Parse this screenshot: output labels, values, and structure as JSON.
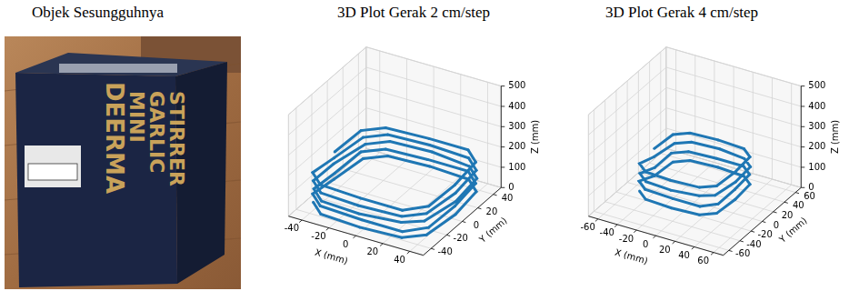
{
  "figure": {
    "photo": {
      "title": "Objek Sesungguhnya",
      "box_text": [
        "DEERMA",
        "MINI",
        "GARLIC",
        "STIRRER"
      ]
    }
  },
  "chart_data": [
    {
      "type": "scatter3d",
      "title": "3D Plot Gerak 2 cm/step",
      "xlabel": "X (mm)",
      "ylabel": "Y (mm)",
      "zlabel": "Z (mm)",
      "xlim": [
        -50,
        50
      ],
      "xticks": [
        -40,
        -20,
        0,
        20,
        40
      ],
      "ylim": [
        -50,
        50
      ],
      "yticks": [
        -40,
        -20,
        0,
        20,
        40
      ],
      "zlim": [
        0,
        500
      ],
      "zticks": [
        0,
        100,
        200,
        300,
        400,
        500
      ],
      "grid": true,
      "color": "#1f77b4",
      "marker": "o",
      "line_style": "solid",
      "x": [
        -42,
        -30,
        0,
        30,
        42,
        45,
        42,
        30,
        0,
        -30,
        -42,
        -45,
        -43,
        -31,
        1,
        31,
        43,
        44,
        41,
        29,
        -1,
        -31,
        -43,
        -44,
        -41,
        -29,
        0,
        29,
        41,
        46,
        43,
        31,
        1,
        -29,
        -41,
        -46,
        -42,
        -30,
        -1,
        30,
        42,
        45,
        42,
        30,
        0,
        -30,
        -42,
        -45,
        -43,
        -31,
        0,
        31,
        43,
        44,
        41,
        29,
        0,
        -31,
        -43,
        -44
      ],
      "y": [
        -32,
        -43,
        -45,
        -43,
        -32,
        0,
        32,
        43,
        45,
        43,
        32,
        0,
        -31,
        -42,
        -44,
        -44,
        -31,
        1,
        33,
        44,
        44,
        42,
        31,
        -1,
        -33,
        -44,
        -46,
        -42,
        -33,
        -1,
        31,
        42,
        46,
        44,
        33,
        1,
        -32,
        -43,
        -45,
        -43,
        -32,
        0,
        32,
        43,
        45,
        43,
        32,
        0,
        -31,
        -42,
        -44,
        -44,
        -31,
        1,
        33,
        44,
        44,
        42,
        31,
        -1
      ],
      "z": [
        25,
        25,
        25,
        25,
        25,
        25,
        25,
        25,
        25,
        25,
        25,
        25,
        60,
        60,
        60,
        60,
        60,
        60,
        60,
        60,
        60,
        60,
        60,
        60,
        95,
        95,
        95,
        95,
        95,
        95,
        95,
        95,
        95,
        95,
        95,
        95,
        130,
        130,
        130,
        130,
        130,
        130,
        130,
        130,
        130,
        130,
        130,
        130,
        165,
        165,
        165,
        165,
        165,
        165,
        165,
        165,
        165,
        165,
        165,
        165
      ]
    },
    {
      "type": "scatter3d",
      "title": "3D Plot Gerak 4 cm/step",
      "xlabel": "X (mm)",
      "ylabel": "Y (mm)",
      "zlabel": "Z (mm)",
      "xlim": [
        -70,
        70
      ],
      "xticks": [
        -60,
        -40,
        -20,
        0,
        20,
        40,
        60
      ],
      "ylim": [
        -70,
        70
      ],
      "yticks": [
        -60,
        -40,
        -20,
        0,
        20,
        40,
        60
      ],
      "zlim": [
        0,
        500
      ],
      "zticks": [
        0,
        100,
        200,
        300,
        400,
        500
      ],
      "grid": true,
      "color": "#1f77b4",
      "marker": "o",
      "line_style": "solid",
      "x": [
        -40,
        -28,
        0,
        28,
        40,
        42,
        40,
        28,
        0,
        -28,
        -40,
        -42,
        -41,
        -29,
        1,
        29,
        41,
        41,
        39,
        27,
        -1,
        -29,
        -41,
        -41,
        -39,
        -27,
        0,
        27,
        39,
        43,
        41,
        29,
        1,
        -27,
        -39,
        -43,
        -40,
        -28,
        -1,
        28,
        40,
        42,
        40,
        28,
        0,
        -28,
        -40,
        -42
      ],
      "y": [
        -30,
        -40,
        -42,
        -40,
        -30,
        0,
        30,
        40,
        42,
        40,
        30,
        0,
        -29,
        -39,
        -41,
        -41,
        -29,
        1,
        31,
        41,
        41,
        39,
        29,
        -1,
        -31,
        -41,
        -43,
        -39,
        -31,
        -1,
        29,
        39,
        43,
        41,
        31,
        1,
        -30,
        -40,
        -42,
        -40,
        -30,
        0,
        30,
        40,
        42,
        40,
        30,
        0
      ],
      "z": [
        70,
        70,
        70,
        70,
        70,
        70,
        70,
        70,
        70,
        70,
        70,
        70,
        115,
        115,
        115,
        115,
        115,
        115,
        115,
        115,
        115,
        115,
        115,
        115,
        160,
        160,
        160,
        160,
        160,
        160,
        160,
        160,
        160,
        160,
        160,
        160,
        205,
        205,
        205,
        205,
        205,
        205,
        205,
        205,
        205,
        205,
        205,
        205
      ]
    }
  ]
}
